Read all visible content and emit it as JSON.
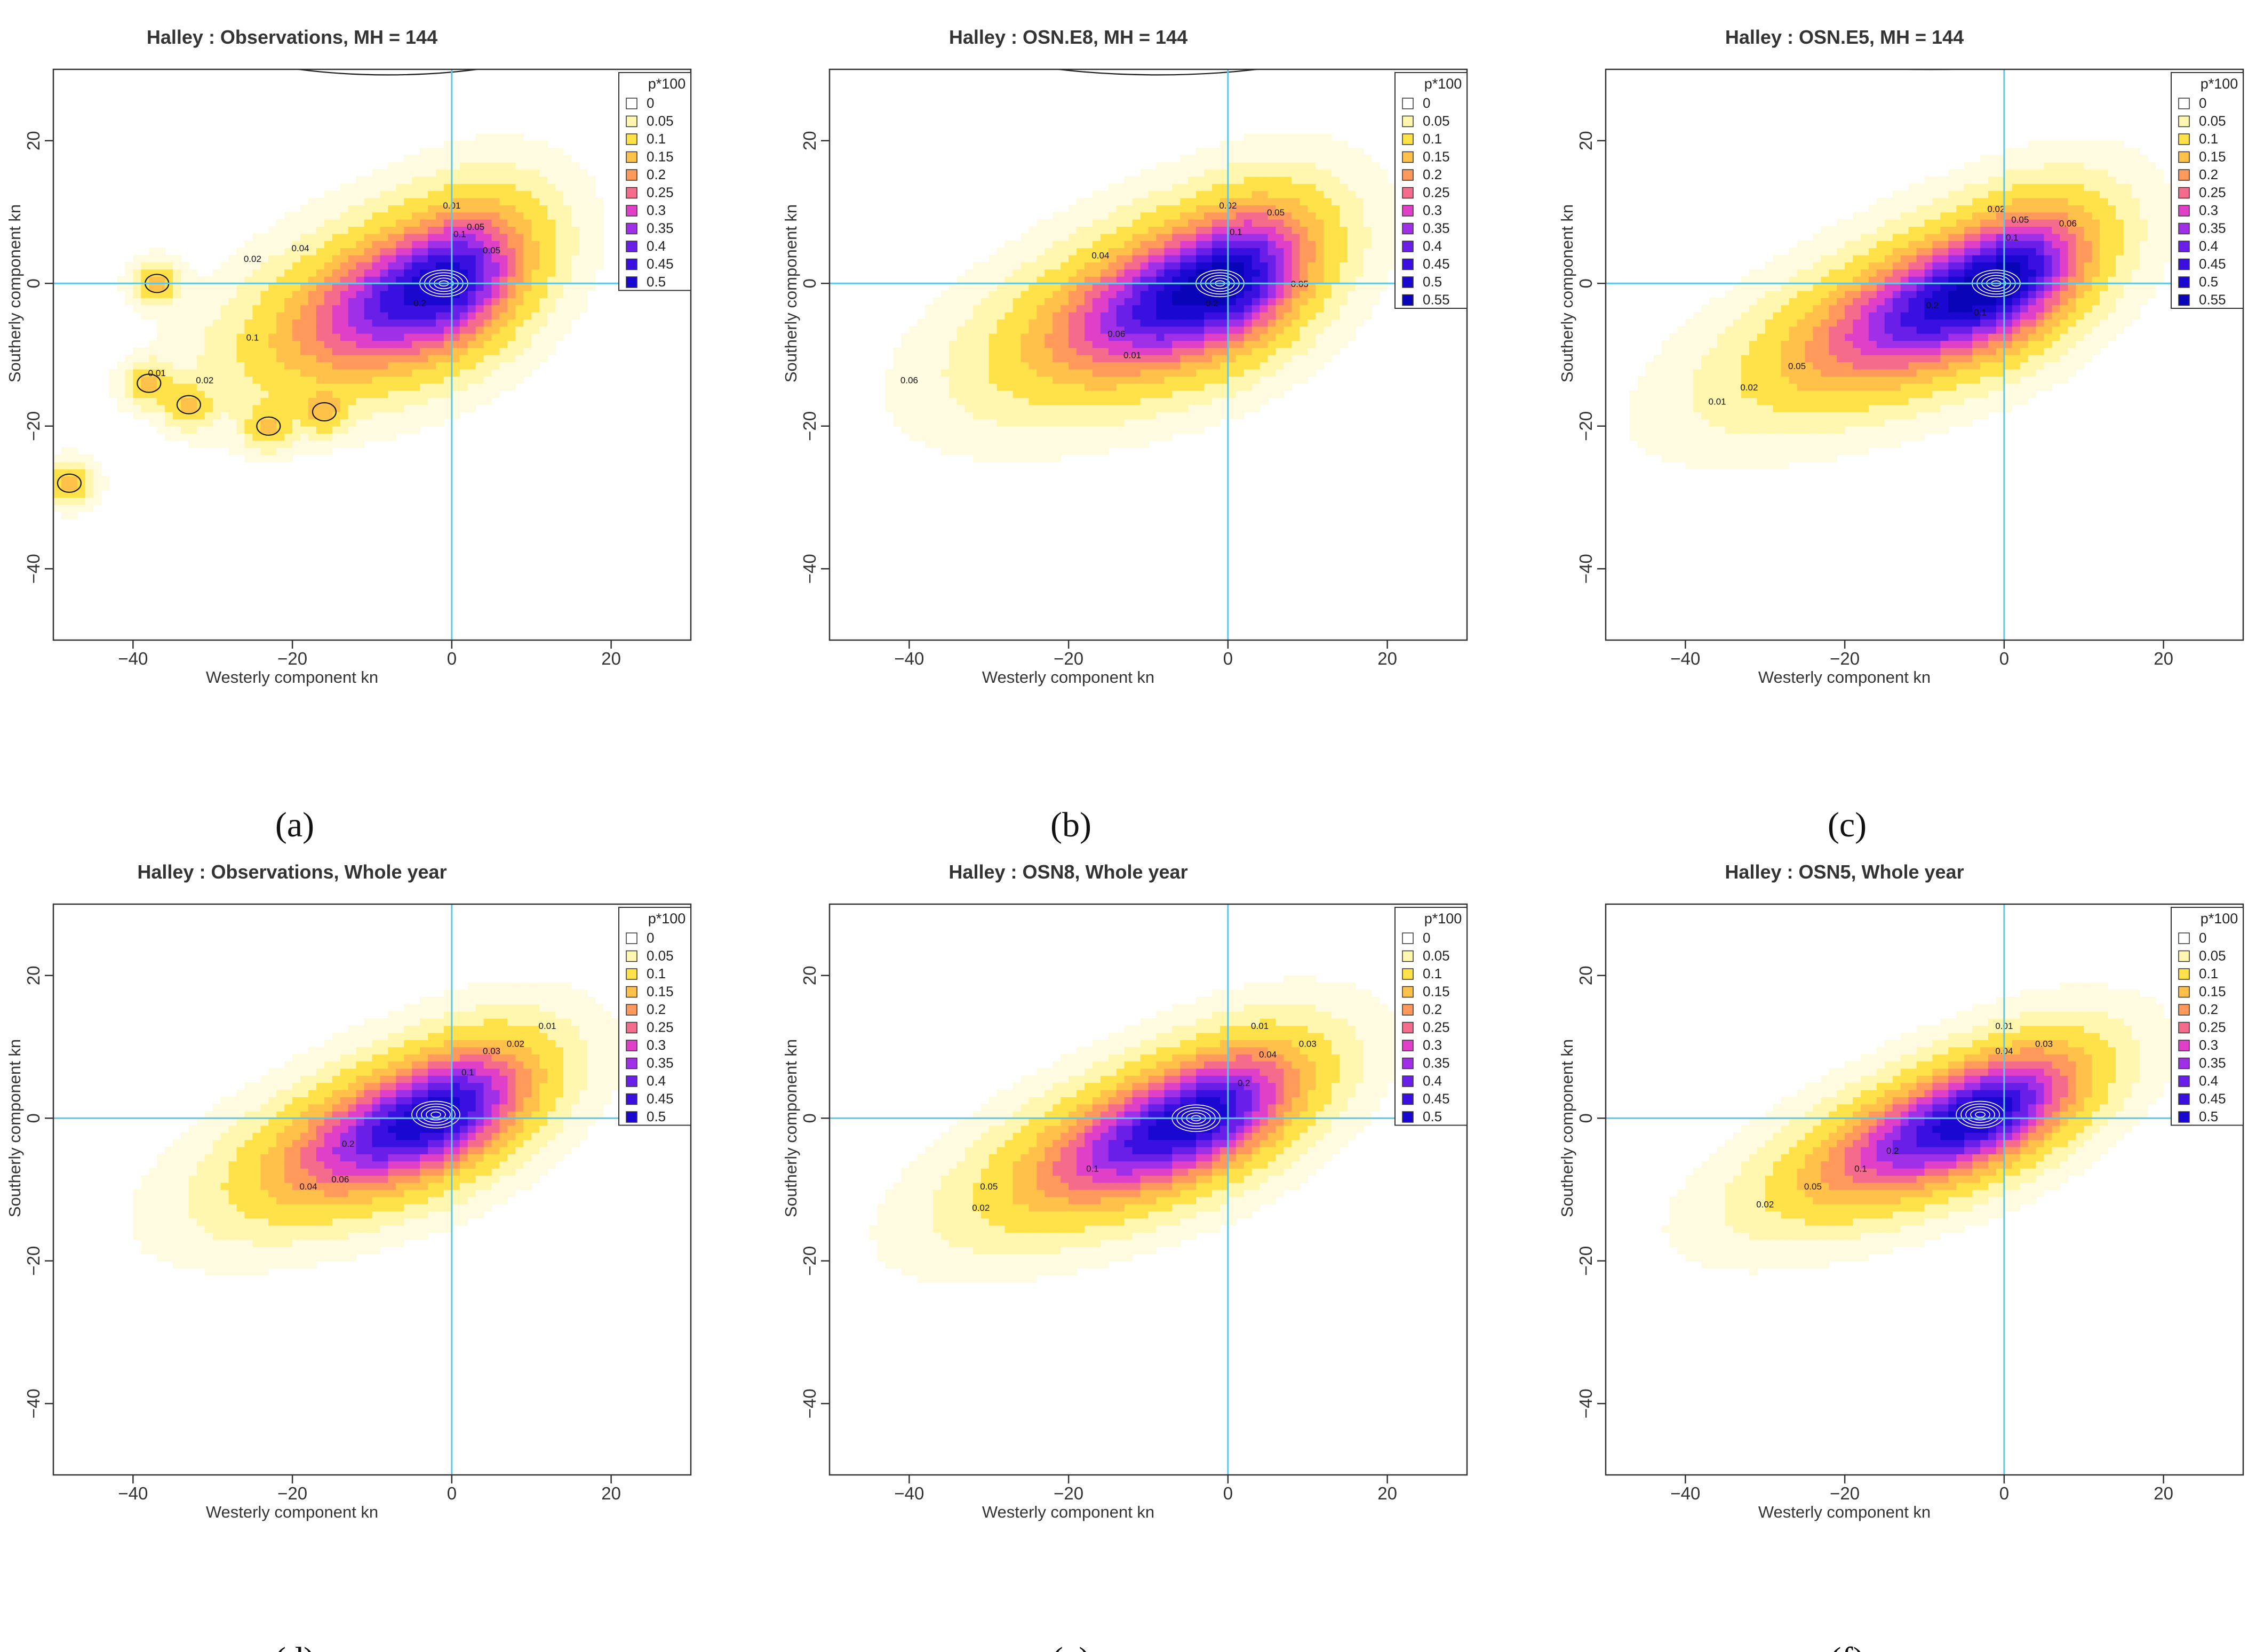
{
  "figure": {
    "captions": [
      "(a)",
      "(b)",
      "(c)",
      "(d)",
      "(e)",
      "(f)"
    ]
  },
  "palette": {
    "lvl_0": "#ffffff",
    "lvl_005": "#fff7b0",
    "lvl_01": "#ffe24a",
    "lvl_015": "#ffc14a",
    "lvl_02": "#ff9a5c",
    "lvl_025": "#f56b8c",
    "lvl_03": "#e040c8",
    "lvl_035": "#a030e8",
    "lvl_04": "#6a1fe8",
    "lvl_045": "#3a10e0",
    "lvl_05": "#1a08d0",
    "lvl_055": "#0a04b8",
    "crosshair": "#5bc8e8",
    "contour": "#1a1a1a"
  },
  "chart_data": [
    {
      "type": "heatmap",
      "title": "Halley : Observations, MH = 144",
      "xlabel": "Westerly component kn",
      "ylabel": "Southerly component kn",
      "xlim": [
        -50,
        30
      ],
      "ylim": [
        -50,
        30
      ],
      "x_ticks": [
        -40,
        -20,
        0,
        20
      ],
      "y_ticks": [
        20,
        0,
        -20,
        -40
      ],
      "legend_title": "p*100",
      "legend_position": "top-right",
      "legend_levels": [
        "0",
        "0.05",
        "0.1",
        "0.15",
        "0.2",
        "0.25",
        "0.3",
        "0.35",
        "0.4",
        "0.45",
        "0.5"
      ],
      "density": {
        "center": [
          -1,
          0
        ],
        "extent_west": -36,
        "extent_east": 18,
        "slope": 0.36,
        "half_width": 7,
        "peak": 0.5,
        "blobs": [
          [
            -38,
            -14
          ],
          [
            -37,
            0
          ],
          [
            -33,
            -17
          ],
          [
            -23,
            -20
          ],
          [
            -16,
            -18
          ],
          [
            -48,
            -28
          ]
        ]
      },
      "contour_labels": [
        {
          "text": "0.01",
          "x": 0,
          "y": 10.5
        },
        {
          "text": "0.05",
          "x": 3,
          "y": 7.5
        },
        {
          "text": "0.1",
          "x": 1,
          "y": 6.5
        },
        {
          "text": "0.02",
          "x": -25,
          "y": 3
        },
        {
          "text": "0.04",
          "x": -19,
          "y": 4.5
        },
        {
          "text": "0.05",
          "x": 5,
          "y": 4.2
        },
        {
          "text": "0.2",
          "x": -4,
          "y": -3.2
        },
        {
          "text": "0.1",
          "x": -25,
          "y": -8
        },
        {
          "text": "0.01",
          "x": -37,
          "y": -13
        },
        {
          "text": "0.02",
          "x": -31,
          "y": -14
        }
      ]
    },
    {
      "type": "heatmap",
      "title": "Halley : OSN.E8, MH = 144",
      "xlabel": "Westerly component kn",
      "ylabel": "Southerly component kn",
      "xlim": [
        -50,
        30
      ],
      "ylim": [
        -50,
        30
      ],
      "x_ticks": [
        -40,
        -20,
        0,
        20
      ],
      "y_ticks": [
        20,
        0,
        -20,
        -40
      ],
      "legend_title": "p*100",
      "legend_position": "top-right",
      "legend_levels": [
        "0",
        "0.05",
        "0.1",
        "0.15",
        "0.2",
        "0.25",
        "0.3",
        "0.35",
        "0.4",
        "0.45",
        "0.5",
        "0.55"
      ],
      "density": {
        "center": [
          -1,
          0
        ],
        "extent_west": -40,
        "extent_east": 20,
        "slope": 0.36,
        "half_width": 7,
        "peak": 0.55,
        "blobs": []
      },
      "contour_labels": [
        {
          "text": "0.02",
          "x": 0,
          "y": 10.5
        },
        {
          "text": "0.05",
          "x": 6,
          "y": 9.5
        },
        {
          "text": "0.1",
          "x": 1,
          "y": 6.8
        },
        {
          "text": "0.04",
          "x": -16,
          "y": 3.5
        },
        {
          "text": "0.2",
          "x": -2,
          "y": -3.2
        },
        {
          "text": "0.05",
          "x": 9,
          "y": -0.5
        },
        {
          "text": "0.06",
          "x": -14,
          "y": -7.5
        },
        {
          "text": "0.01",
          "x": -12,
          "y": -10.5
        },
        {
          "text": "0.06",
          "x": -40,
          "y": -14
        }
      ]
    },
    {
      "type": "heatmap",
      "title": "Halley : OSN.E5, MH = 144",
      "xlabel": "Westerly component kn",
      "ylabel": "Southerly component kn",
      "xlim": [
        -50,
        30
      ],
      "ylim": [
        -50,
        30
      ],
      "x_ticks": [
        -40,
        -20,
        0,
        20
      ],
      "y_ticks": [
        20,
        0,
        -20,
        -40
      ],
      "legend_title": "p*100",
      "legend_position": "top-right",
      "legend_levels": [
        "0",
        "0.05",
        "0.1",
        "0.15",
        "0.2",
        "0.25",
        "0.3",
        "0.35",
        "0.4",
        "0.45",
        "0.5",
        "0.55"
      ],
      "density": {
        "center": [
          -1,
          0
        ],
        "extent_west": -44,
        "extent_east": 20,
        "slope": 0.4,
        "half_width": 6.5,
        "peak": 0.55,
        "blobs": []
      },
      "contour_labels": [
        {
          "text": "0.02",
          "x": -1,
          "y": 10
        },
        {
          "text": "0.05",
          "x": 2,
          "y": 8.5
        },
        {
          "text": "0.06",
          "x": 8,
          "y": 8
        },
        {
          "text": "0.1",
          "x": 1,
          "y": 6
        },
        {
          "text": "0.2",
          "x": -9,
          "y": -3.5
        },
        {
          "text": "0.1",
          "x": -3,
          "y": -4.5
        },
        {
          "text": "0.05",
          "x": -26,
          "y": -12
        },
        {
          "text": "0.02",
          "x": -32,
          "y": -15
        },
        {
          "text": "0.01",
          "x": -36,
          "y": -17
        }
      ]
    },
    {
      "type": "heatmap",
      "title": "Halley : Observations, Whole year",
      "xlabel": "Westerly component kn",
      "ylabel": "Southerly component kn",
      "xlim": [
        -50,
        30
      ],
      "ylim": [
        -50,
        30
      ],
      "x_ticks": [
        -40,
        -20,
        0,
        20
      ],
      "y_ticks": [
        20,
        0,
        -20,
        -40
      ],
      "legend_title": "p*100",
      "legend_position": "top-right",
      "legend_levels": [
        "0",
        "0.05",
        "0.1",
        "0.15",
        "0.2",
        "0.25",
        "0.3",
        "0.35",
        "0.4",
        "0.45",
        "0.5"
      ],
      "density": {
        "center": [
          -2,
          0.5
        ],
        "extent_west": -38,
        "extent_east": 20,
        "slope": 0.38,
        "half_width": 6,
        "peak": 0.5,
        "blobs": []
      },
      "contour_labels": [
        {
          "text": "0.01",
          "x": 12,
          "y": 12.5
        },
        {
          "text": "0.02",
          "x": 8,
          "y": 10
        },
        {
          "text": "0.03",
          "x": 5,
          "y": 9
        },
        {
          "text": "0.1",
          "x": 2,
          "y": 6
        },
        {
          "text": "0.2",
          "x": -13,
          "y": -4
        },
        {
          "text": "0.06",
          "x": -14,
          "y": -9
        },
        {
          "text": "0.04",
          "x": -18,
          "y": -10
        }
      ]
    },
    {
      "type": "heatmap",
      "title": "Halley : OSN8, Whole year",
      "xlabel": "Westerly component kn",
      "ylabel": "Southerly component kn",
      "xlim": [
        -50,
        30
      ],
      "ylim": [
        -50,
        30
      ],
      "x_ticks": [
        -40,
        -20,
        0,
        20
      ],
      "y_ticks": [
        20,
        0,
        -20,
        -40
      ],
      "legend_title": "p*100",
      "legend_position": "top-right",
      "legend_levels": [
        "0",
        "0.05",
        "0.1",
        "0.15",
        "0.2",
        "0.25",
        "0.3",
        "0.35",
        "0.4",
        "0.45",
        "0.5"
      ],
      "density": {
        "center": [
          -4,
          0
        ],
        "extent_west": -42,
        "extent_east": 20,
        "slope": 0.4,
        "half_width": 6,
        "peak": 0.5,
        "blobs": []
      },
      "contour_labels": [
        {
          "text": "0.01",
          "x": 4,
          "y": 12.5
        },
        {
          "text": "0.03",
          "x": 10,
          "y": 10
        },
        {
          "text": "0.04",
          "x": 5,
          "y": 8.5
        },
        {
          "text": "0.2",
          "x": 2,
          "y": 4.5
        },
        {
          "text": "0.1",
          "x": -17,
          "y": -7.5
        },
        {
          "text": "0.05",
          "x": -30,
          "y": -10
        },
        {
          "text": "0.02",
          "x": -31,
          "y": -13
        }
      ]
    },
    {
      "type": "heatmap",
      "title": "Halley : OSN5, Whole year",
      "xlabel": "Westerly component kn",
      "ylabel": "Southerly component kn",
      "xlim": [
        -50,
        30
      ],
      "ylim": [
        -50,
        30
      ],
      "x_ticks": [
        -40,
        -20,
        0,
        20
      ],
      "y_ticks": [
        20,
        0,
        -20,
        -40
      ],
      "legend_title": "p*100",
      "legend_position": "top-right",
      "legend_levels": [
        "0",
        "0.05",
        "0.1",
        "0.15",
        "0.2",
        "0.25",
        "0.3",
        "0.35",
        "0.4",
        "0.45",
        "0.5"
      ],
      "density": {
        "center": [
          -3,
          0.5
        ],
        "extent_west": -40,
        "extent_east": 20,
        "slope": 0.4,
        "half_width": 5.5,
        "peak": 0.5,
        "blobs": []
      },
      "contour_labels": [
        {
          "text": "0.01",
          "x": 0,
          "y": 12.5
        },
        {
          "text": "0.04",
          "x": 0,
          "y": 9
        },
        {
          "text": "0.03",
          "x": 5,
          "y": 10
        },
        {
          "text": "0.2",
          "x": -14,
          "y": -5
        },
        {
          "text": "0.1",
          "x": -18,
          "y": -7.5
        },
        {
          "text": "0.05",
          "x": -24,
          "y": -10
        },
        {
          "text": "0.02",
          "x": -30,
          "y": -12.5
        }
      ]
    }
  ]
}
